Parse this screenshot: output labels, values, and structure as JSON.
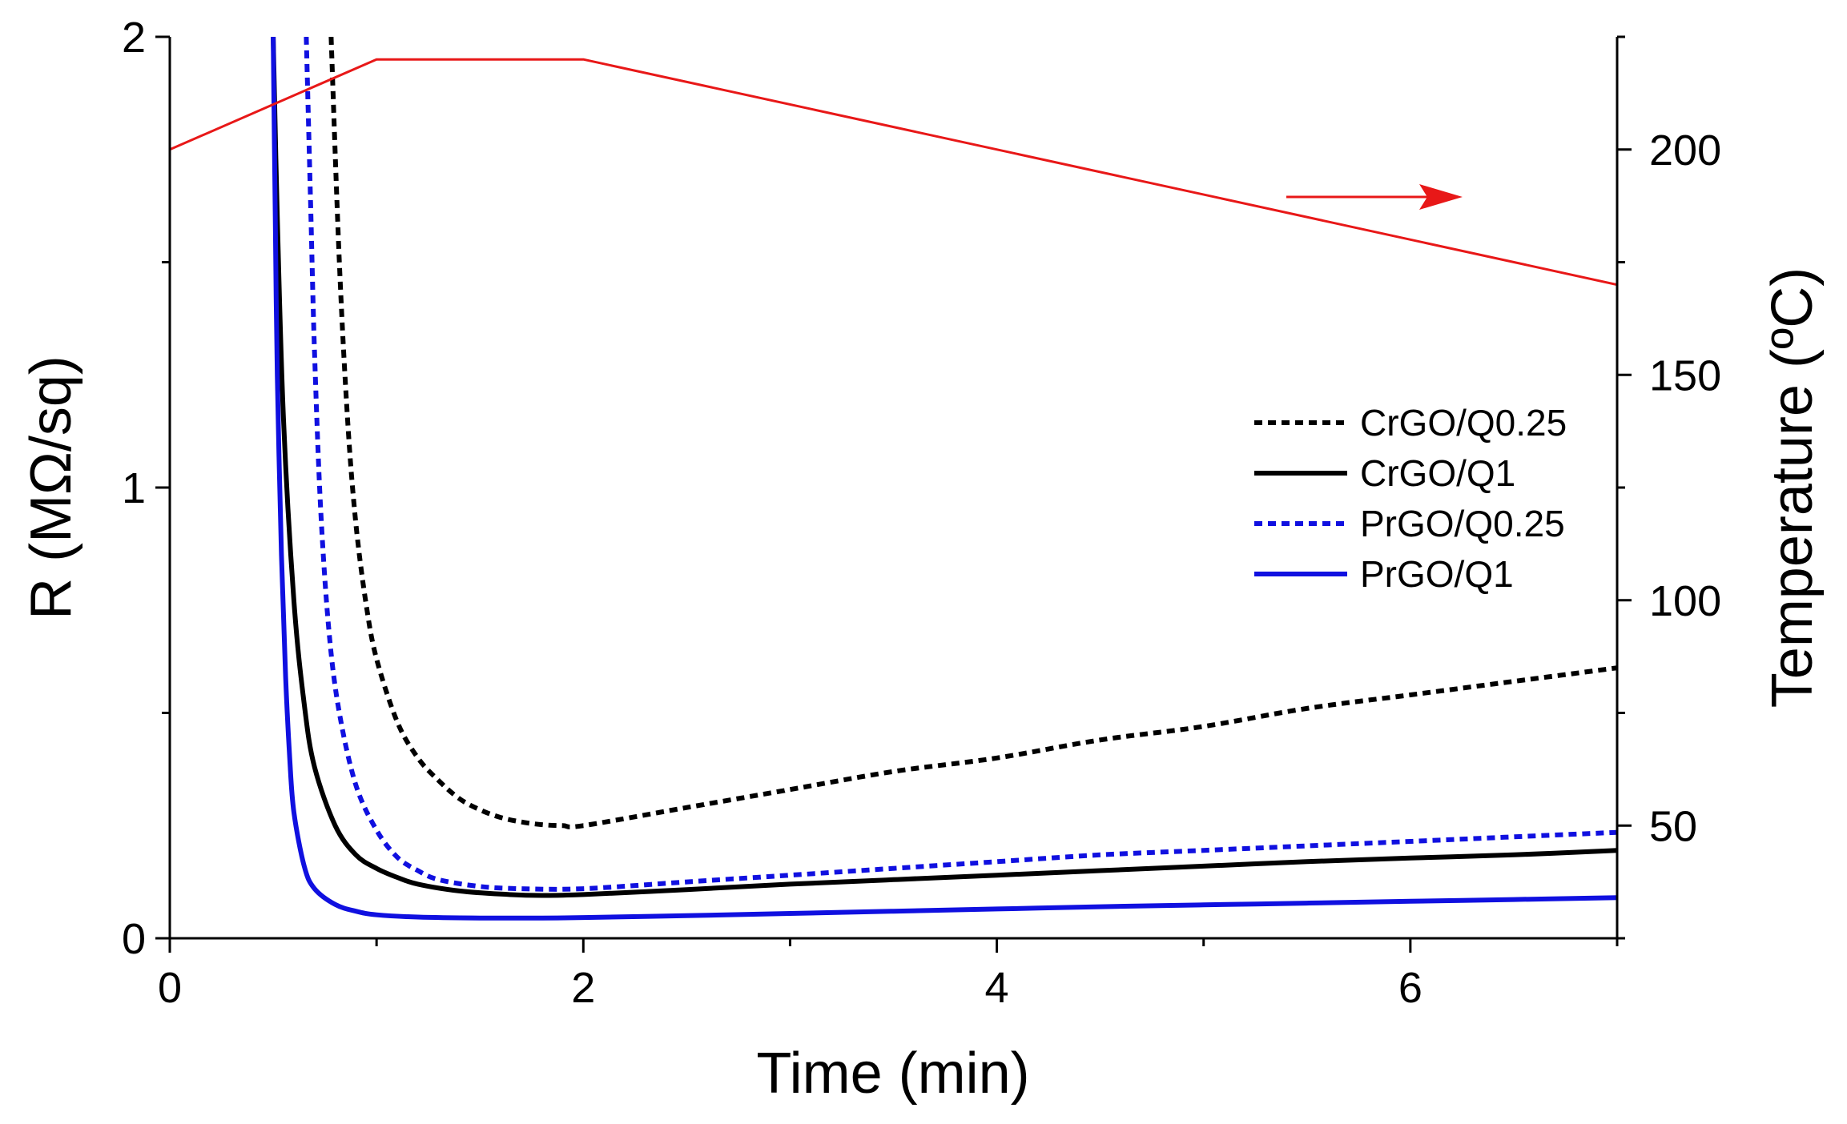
{
  "chart_data": {
    "type": "line",
    "title": "",
    "xlabel": "Time (min)",
    "ylabel": "R (MΩ/sq)",
    "y2label": "Temperature (ºC)",
    "xlim": [
      0,
      7
    ],
    "ylim": [
      0,
      2
    ],
    "y2lim": [
      25,
      225
    ],
    "xticks": [
      0,
      2,
      4,
      6
    ],
    "yticks": [
      0,
      1,
      2
    ],
    "y2ticks": [
      50,
      100,
      150,
      200
    ],
    "legend_position": "center-right",
    "series": [
      {
        "name": "CrGO/Q0.25",
        "axis": "left",
        "color": "#000000",
        "style": "dotted",
        "x": [
          0.78,
          0.82,
          0.86,
          0.9,
          0.95,
          1.0,
          1.1,
          1.2,
          1.3,
          1.4,
          1.5,
          1.6,
          1.7,
          1.8,
          1.9,
          2.0,
          2.5,
          3.0,
          3.5,
          4.0,
          4.5,
          5.0,
          5.5,
          6.0,
          6.5,
          7.0
        ],
        "values": [
          2.0,
          1.5,
          1.15,
          0.92,
          0.74,
          0.62,
          0.48,
          0.4,
          0.35,
          0.31,
          0.285,
          0.268,
          0.258,
          0.252,
          0.25,
          0.25,
          0.29,
          0.33,
          0.37,
          0.4,
          0.44,
          0.47,
          0.51,
          0.54,
          0.57,
          0.6
        ]
      },
      {
        "name": "CrGO/Q1",
        "axis": "left",
        "color": "#000000",
        "style": "solid",
        "x": [
          0.5,
          0.52,
          0.55,
          0.6,
          0.65,
          0.7,
          0.8,
          0.9,
          1.0,
          1.1,
          1.2,
          1.4,
          1.6,
          1.8,
          2.0,
          2.5,
          3.0,
          3.5,
          4.0,
          4.5,
          5.0,
          5.5,
          6.0,
          6.5,
          7.0
        ],
        "values": [
          2.0,
          1.6,
          1.15,
          0.75,
          0.52,
          0.38,
          0.25,
          0.185,
          0.155,
          0.135,
          0.12,
          0.105,
          0.098,
          0.095,
          0.097,
          0.108,
          0.12,
          0.13,
          0.14,
          0.15,
          0.16,
          0.17,
          0.178,
          0.185,
          0.195
        ]
      },
      {
        "name": "PrGO/Q0.25",
        "axis": "left",
        "color": "#1010e0",
        "style": "dotted",
        "x": [
          0.66,
          0.68,
          0.7,
          0.73,
          0.77,
          0.82,
          0.9,
          1.0,
          1.1,
          1.2,
          1.3,
          1.5,
          1.7,
          2.0,
          2.5,
          3.0,
          3.5,
          4.0,
          4.5,
          5.0,
          5.5,
          6.0,
          6.5,
          7.0
        ],
        "values": [
          2.0,
          1.65,
          1.3,
          0.95,
          0.68,
          0.5,
          0.34,
          0.24,
          0.18,
          0.15,
          0.13,
          0.115,
          0.11,
          0.11,
          0.125,
          0.14,
          0.155,
          0.17,
          0.185,
          0.195,
          0.205,
          0.215,
          0.225,
          0.235
        ]
      },
      {
        "name": "PrGO/Q1",
        "axis": "left",
        "color": "#1010e0",
        "style": "solid",
        "x": [
          0.5,
          0.51,
          0.52,
          0.54,
          0.56,
          0.58,
          0.6,
          0.65,
          0.7,
          0.8,
          0.9,
          1.0,
          1.2,
          1.5,
          1.8,
          2.0,
          2.5,
          3.0,
          3.5,
          4.0,
          4.5,
          5.0,
          5.5,
          6.0,
          6.5,
          7.0
        ],
        "values": [
          2.0,
          1.6,
          1.25,
          0.85,
          0.58,
          0.4,
          0.28,
          0.16,
          0.11,
          0.075,
          0.06,
          0.052,
          0.047,
          0.045,
          0.045,
          0.046,
          0.05,
          0.055,
          0.06,
          0.065,
          0.07,
          0.074,
          0.078,
          0.082,
          0.086,
          0.09
        ]
      },
      {
        "name": "Temperature",
        "axis": "right",
        "color": "#e81818",
        "style": "solid",
        "x": [
          0,
          1,
          2,
          7
        ],
        "values": [
          200,
          220,
          220,
          170
        ]
      }
    ],
    "annotations": [
      {
        "type": "arrow",
        "color": "#e81818",
        "direction": "right",
        "meaning": "red curve uses right axis"
      }
    ]
  }
}
